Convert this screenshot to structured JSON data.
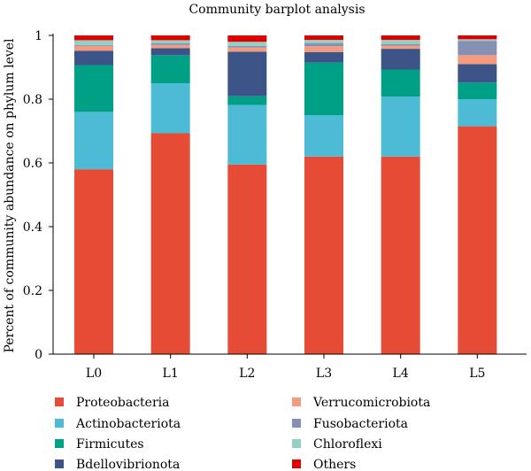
{
  "chart_data": {
    "type": "bar",
    "stacked": true,
    "title": "Community barplot analysis",
    "xlabel": "",
    "ylabel": "Percent of community abundance on phylum level",
    "ylim": [
      0,
      1
    ],
    "yticks": [
      "0",
      "0.2",
      "0.4",
      "0.6",
      "0.8",
      "1"
    ],
    "categories": [
      "L0",
      "L1",
      "L2",
      "L3",
      "L4",
      "L5"
    ],
    "legend_position": "bottom",
    "series": [
      {
        "name": "Proteobacteria",
        "color": "#e64b35",
        "values": [
          0.58,
          0.693,
          0.595,
          0.62,
          0.62,
          0.715
        ]
      },
      {
        "name": "Actinobacteriota",
        "color": "#4dbbd5",
        "values": [
          0.18,
          0.157,
          0.187,
          0.13,
          0.188,
          0.085
        ]
      },
      {
        "name": "Firmicutes",
        "color": "#00a087",
        "values": [
          0.147,
          0.088,
          0.027,
          0.165,
          0.085,
          0.052
        ]
      },
      {
        "name": "Bdellovibrionota",
        "color": "#3c5488",
        "values": [
          0.045,
          0.022,
          0.14,
          0.033,
          0.065,
          0.058
        ]
      },
      {
        "name": "Verrucomicrobiota",
        "color": "#f39b7f",
        "values": [
          0.015,
          0.01,
          0.013,
          0.018,
          0.01,
          0.028
        ]
      },
      {
        "name": "Fusobacteriota",
        "color": "#8491b4",
        "values": [
          0.003,
          0.005,
          0.005,
          0.01,
          0.005,
          0.045
        ]
      },
      {
        "name": "Chloroflexi",
        "color": "#91d1c2",
        "values": [
          0.015,
          0.01,
          0.013,
          0.01,
          0.013,
          0.005
        ]
      },
      {
        "name": "Others",
        "color": "#dc0000",
        "values": [
          0.015,
          0.015,
          0.02,
          0.014,
          0.014,
          0.012
        ]
      }
    ]
  }
}
